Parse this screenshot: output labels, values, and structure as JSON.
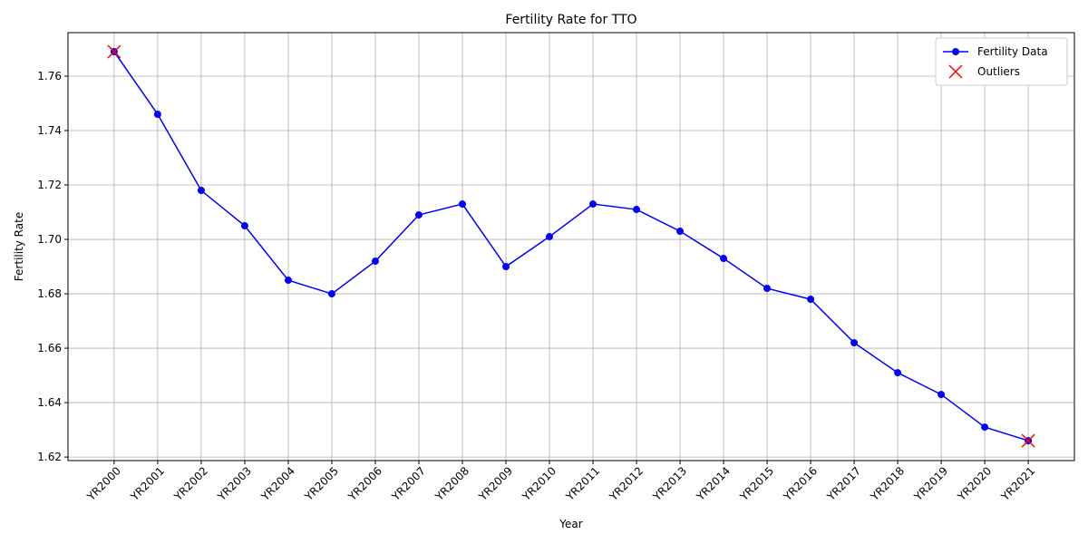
{
  "chart_data": {
    "type": "line",
    "title": "Fertility Rate for TTO",
    "xlabel": "Year",
    "ylabel": "Fertility Rate",
    "categories": [
      "YR2000",
      "YR2001",
      "YR2002",
      "YR2003",
      "YR2004",
      "YR2005",
      "YR2006",
      "YR2007",
      "YR2008",
      "YR2009",
      "YR2010",
      "YR2011",
      "YR2012",
      "YR2013",
      "YR2014",
      "YR2015",
      "YR2016",
      "YR2017",
      "YR2018",
      "YR2019",
      "YR2020",
      "YR2021"
    ],
    "series": [
      {
        "name": "Fertility Data",
        "color": "#0000ff",
        "style": "line",
        "values": [
          1.769,
          1.746,
          1.718,
          1.705,
          1.685,
          1.68,
          1.692,
          1.709,
          1.713,
          1.69,
          1.701,
          1.713,
          1.711,
          1.703,
          1.693,
          1.682,
          1.678,
          1.662,
          1.651,
          1.643,
          1.631,
          1.626
        ]
      },
      {
        "name": "Outliers",
        "color": "#ff0000",
        "style": "scatter",
        "values": [
          1.769,
          null,
          null,
          null,
          null,
          null,
          null,
          null,
          null,
          null,
          null,
          null,
          null,
          null,
          null,
          null,
          null,
          null,
          null,
          null,
          null,
          1.626
        ]
      }
    ],
    "ylim": [
      1.6187,
      1.776
    ],
    "yticks": [
      1.62,
      1.64,
      1.66,
      1.68,
      {
        "value": 1.7,
        "label": "1.70"
      },
      1.72,
      1.74,
      1.76
    ],
    "grid": true,
    "legend": "upper right"
  }
}
